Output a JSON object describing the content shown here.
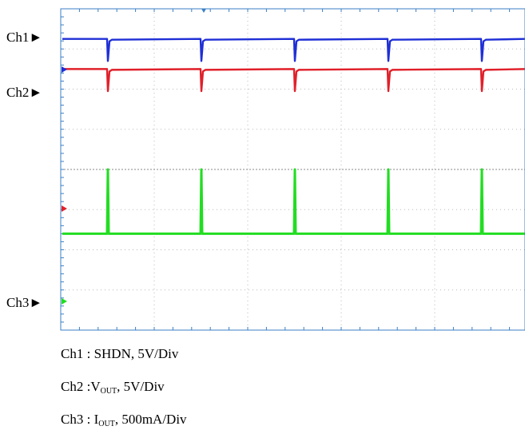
{
  "chart_data": {
    "type": "line",
    "divisions": {
      "x": 10,
      "y": 8
    },
    "series": [
      {
        "label": "Ch1",
        "color": "#1f2fd6",
        "baseline_div": 0.75,
        "pulse_div": -0.55
      },
      {
        "label": "Ch2",
        "color": "#e0202a",
        "baseline_div": 1.5,
        "pulse_div": -0.55
      },
      {
        "label": "Ch3",
        "color": "#22dd22",
        "baseline_div": 5.6,
        "pulse_div": -1.6
      }
    ],
    "pulse_positions_div": [
      1,
      3,
      5,
      7,
      9
    ],
    "legend": [
      {
        "channel": "Ch1",
        "sep": " : ",
        "name": "SHDN",
        "sub": "",
        "scale": ", 5V/Div"
      },
      {
        "channel": "Ch2",
        "sep": " :",
        "name": "V",
        "sub": "OUT",
        "scale": ", 5V/Div"
      },
      {
        "channel": "Ch3",
        "sep": " : ",
        "name": "I",
        "sub": "OUT",
        "scale": ", 500mA/Div"
      }
    ]
  }
}
